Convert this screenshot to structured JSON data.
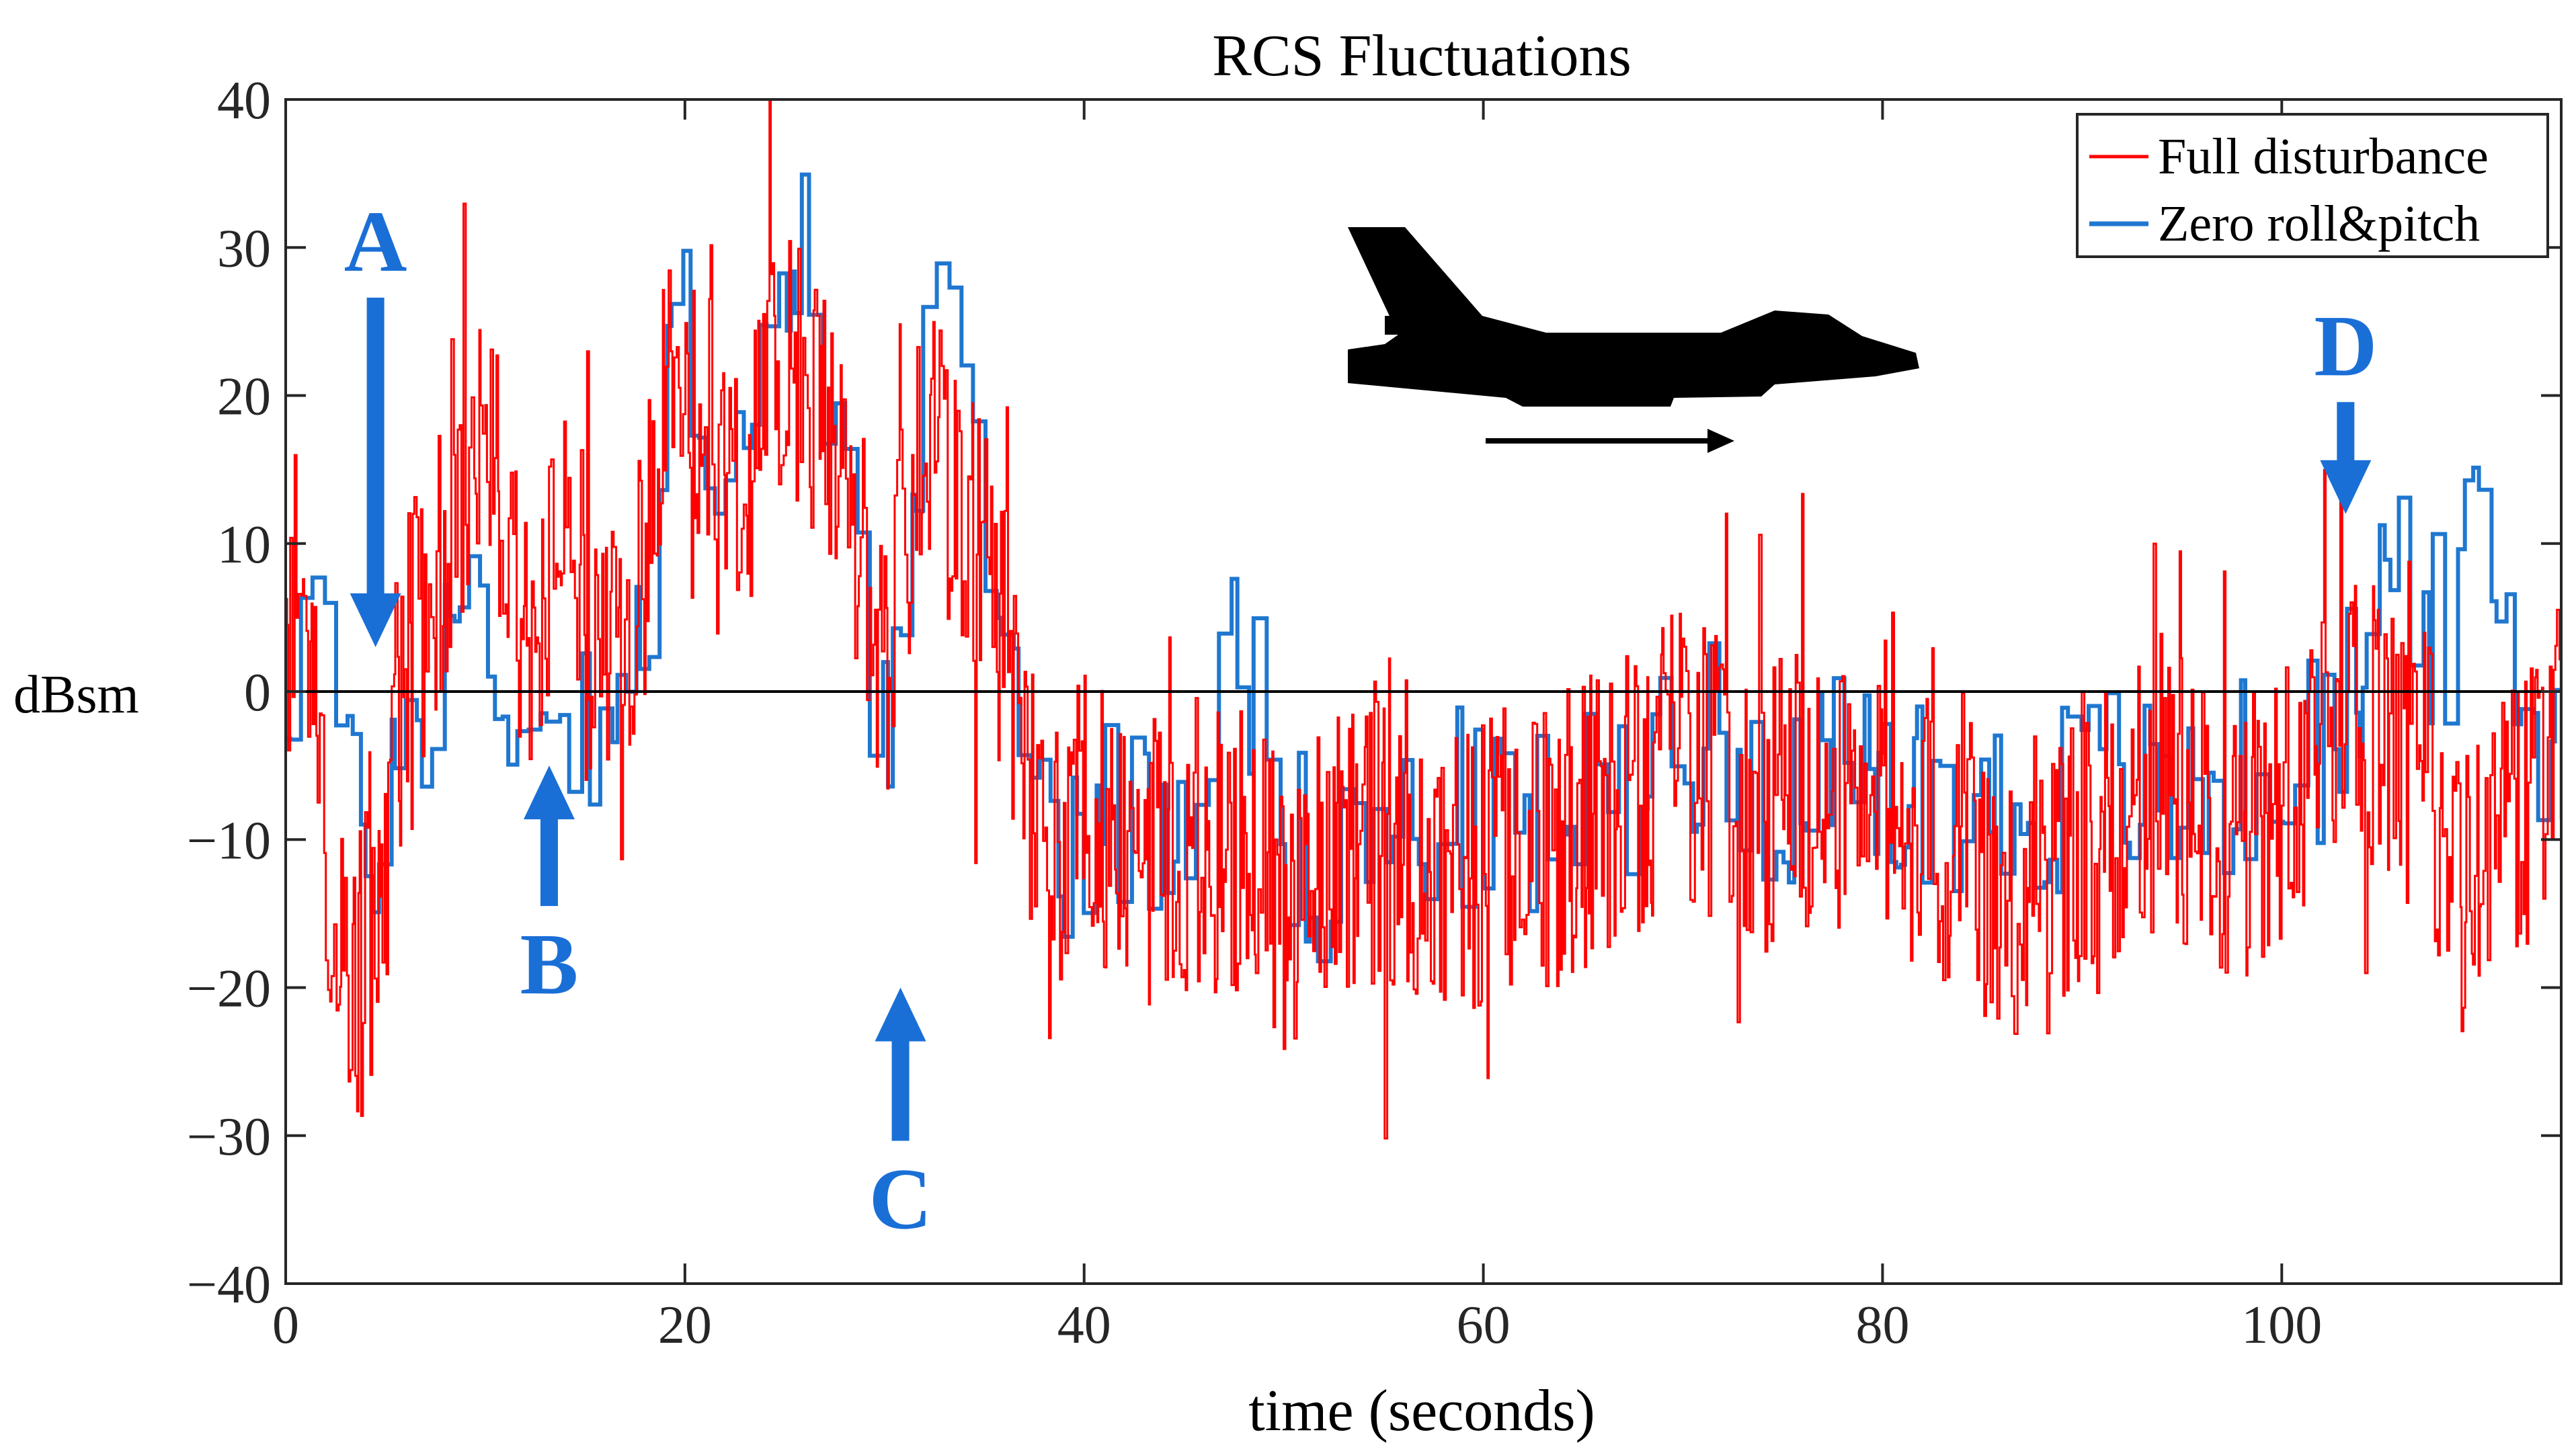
{
  "chart_data": {
    "type": "line",
    "title": "RCS Fluctuations",
    "xlabel": "time (seconds)",
    "ylabel": "dBsm",
    "xlim": [
      0,
      114
    ],
    "ylim": [
      -40,
      40
    ],
    "xticks": [
      0,
      20,
      40,
      60,
      80,
      100
    ],
    "yticks": [
      -40,
      -30,
      -20,
      -10,
      0,
      10,
      20,
      30,
      40
    ],
    "xtick_labels": [
      "0",
      "20",
      "40",
      "60",
      "80",
      "100"
    ],
    "ytick_labels": [
      "−40",
      "−30",
      "−20",
      "−10",
      "0",
      "10",
      "20",
      "30",
      "40"
    ],
    "grid": false,
    "legend": "top-right",
    "reference_line": 0,
    "series": [
      {
        "name": "Full disturbance",
        "color": "#ff0000",
        "style": "noisy",
        "x": [
          0,
          1,
          2,
          3,
          4,
          5,
          6,
          7,
          8,
          9,
          10,
          11,
          12,
          13,
          14,
          15,
          16,
          17,
          18,
          19,
          20,
          21,
          22,
          23,
          24,
          25,
          26,
          27,
          28,
          29,
          30,
          31,
          32,
          33,
          34,
          35,
          36,
          37,
          38,
          39,
          40,
          42,
          44,
          46,
          48,
          50,
          52,
          54,
          56,
          58,
          60,
          62,
          64,
          66,
          68,
          70,
          72,
          74,
          76,
          78,
          80,
          82,
          84,
          86,
          88,
          90,
          92,
          94,
          96,
          98,
          100,
          102,
          103,
          104,
          105,
          106,
          107,
          108,
          109,
          110,
          111,
          112,
          113,
          114
        ],
        "y": [
          0,
          2,
          -10,
          -22,
          -18,
          -10,
          2,
          6,
          10,
          14,
          18,
          12,
          2,
          5,
          10,
          6,
          2,
          0,
          10,
          22,
          18,
          20,
          16,
          14,
          18,
          22,
          20,
          18,
          14,
          8,
          0,
          10,
          18,
          14,
          12,
          8,
          4,
          -5,
          -8,
          -10,
          -8,
          -10,
          -12,
          -10,
          -12,
          -14,
          -12,
          -10,
          -10,
          -12,
          -12,
          -10,
          -10,
          -8,
          -6,
          -4,
          -6,
          -8,
          -6,
          -8,
          -6,
          -10,
          -10,
          -14,
          -12,
          -10,
          -8,
          -6,
          -8,
          -10,
          -8,
          -4,
          0,
          -4,
          -2,
          -6,
          -4,
          -10,
          -14,
          -12,
          -10,
          -8,
          -6,
          -4
        ]
      },
      {
        "name": "Zero roll&pitch",
        "color": "#1f77d0",
        "style": "stairs",
        "x": [
          0,
          1,
          2,
          3,
          4,
          5,
          6,
          7,
          8,
          9,
          10,
          11,
          12,
          13,
          14,
          15,
          16,
          17,
          18,
          19,
          20,
          21,
          22,
          23,
          24,
          25,
          26,
          27,
          28,
          29,
          30,
          31,
          32,
          33,
          34,
          35,
          36,
          37,
          38,
          39,
          40,
          42,
          44,
          46,
          47,
          48,
          50,
          52,
          54,
          56,
          58,
          60,
          62,
          64,
          66,
          68,
          70,
          72,
          74,
          76,
          78,
          80,
          82,
          84,
          86,
          88,
          90,
          92,
          94,
          96,
          98,
          100,
          102,
          103,
          104,
          105,
          106,
          107,
          108,
          109,
          110,
          111,
          112,
          113,
          114
        ],
        "y": [
          0,
          8,
          4,
          -8,
          -10,
          -8,
          -2,
          0,
          4,
          6,
          4,
          0,
          -4,
          -2,
          0,
          -2,
          0,
          2,
          0,
          20,
          24,
          20,
          16,
          18,
          20,
          24,
          30,
          22,
          18,
          4,
          -2,
          4,
          20,
          24,
          22,
          14,
          2,
          -6,
          -8,
          -10,
          -8,
          -8,
          -10,
          -4,
          12,
          2,
          -10,
          -12,
          -10,
          -10,
          -8,
          -8,
          -10,
          -8,
          -8,
          -4,
          -2,
          -4,
          -6,
          -6,
          -6,
          -8,
          -6,
          -8,
          -8,
          -8,
          -6,
          -6,
          -8,
          -6,
          -6,
          -4,
          -4,
          -2,
          2,
          8,
          10,
          6,
          2,
          8,
          10,
          4,
          0,
          -4,
          4
        ]
      }
    ],
    "annotations": [
      {
        "label": "A",
        "x": 4.5,
        "y": 3,
        "direction": "down"
      },
      {
        "label": "B",
        "x": 13.2,
        "y": -5,
        "direction": "up"
      },
      {
        "label": "C",
        "x": 30.8,
        "y": -20,
        "direction": "up"
      },
      {
        "label": "D",
        "x": 103.2,
        "y": 12,
        "direction": "down"
      }
    ]
  },
  "colors": {
    "annotation": "#1a6fd6",
    "axis": "#262626",
    "aircraft": "#000000"
  },
  "icons": {
    "aircraft": "fighter-jet-silhouette-icon",
    "direction": "direction-arrow-icon"
  }
}
